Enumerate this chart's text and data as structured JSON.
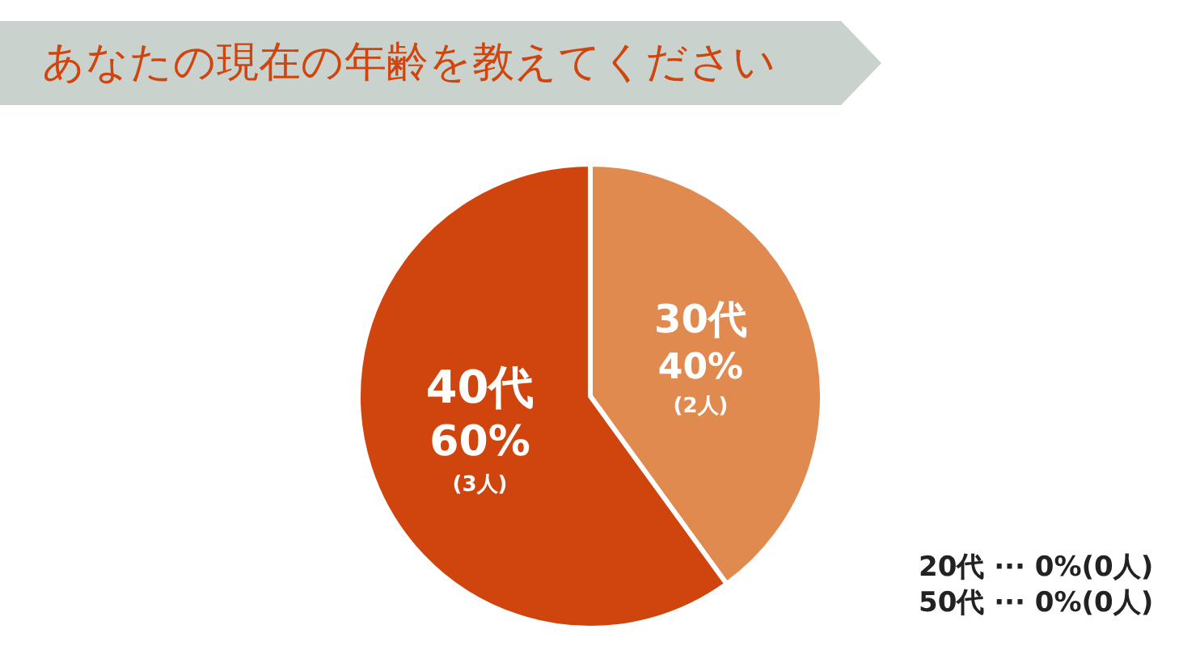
{
  "chart_data": {
    "type": "pie",
    "title": "あなたの現在の年齢を教えてください",
    "categories": [
      "30代",
      "40代"
    ],
    "values": [
      40,
      60
    ],
    "colors": [
      "#e08a50",
      "#d0450e"
    ],
    "value_labels": [
      "40%",
      "60%"
    ],
    "legend": false,
    "annotations": [
      {
        "text": "(2人)",
        "x": "30代"
      },
      {
        "text": "(3人)",
        "x": "40代"
      },
      "20代 ··· 0%(0人)",
      "50代 ··· 0%(0人)"
    ]
  }
}
